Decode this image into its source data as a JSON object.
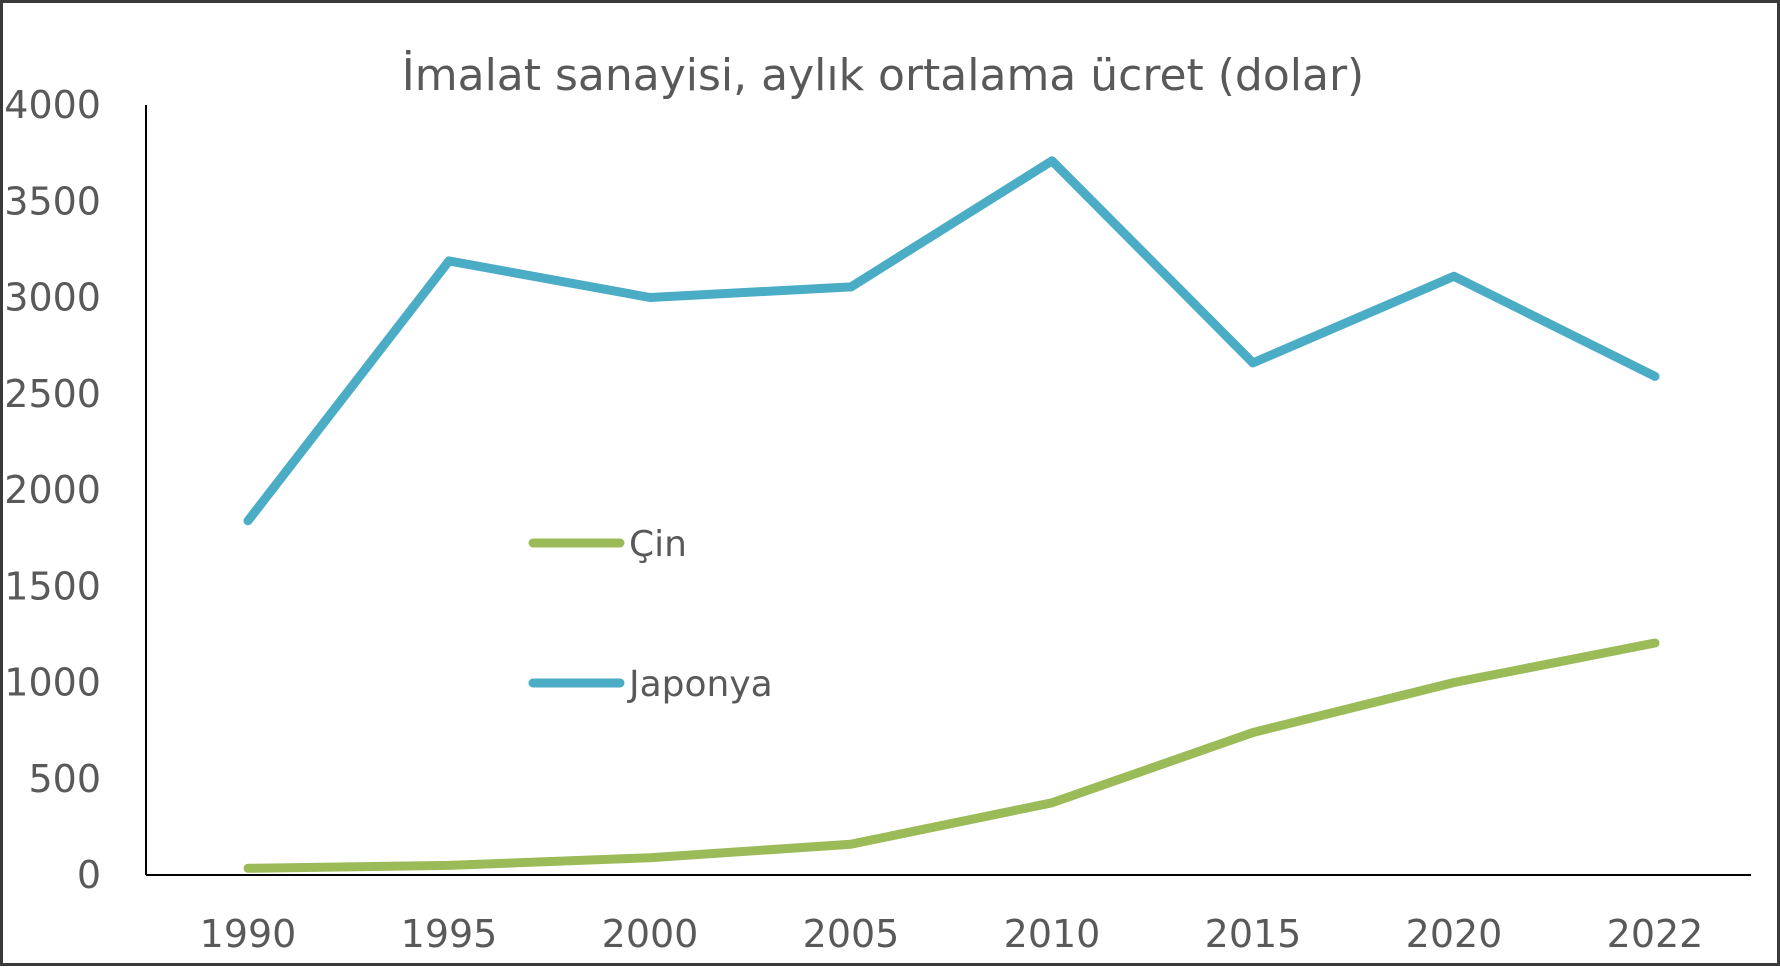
{
  "chart_data": {
    "type": "line",
    "title": "İmalat sanayisi, aylık ortalama ücret (dolar)",
    "xlabel": "",
    "ylabel": "",
    "categories": [
      "1990",
      "1995",
      "2000",
      "2005",
      "2010",
      "2015",
      "2020",
      "2022"
    ],
    "ylim": [
      0,
      4000
    ],
    "yticks": [
      0,
      500,
      1000,
      1500,
      2000,
      2500,
      3000,
      3500,
      4000
    ],
    "grid": false,
    "legend_position": "center",
    "series": [
      {
        "name": "Çin",
        "color": "#9bbb59",
        "values": [
          35,
          50,
          90,
          160,
          375,
          740,
          1000,
          1205
        ]
      },
      {
        "name": "Japonya",
        "color": "#4bacc6",
        "values": [
          1840,
          3190,
          3000,
          3055,
          3710,
          2660,
          3110,
          2590
        ]
      }
    ]
  }
}
